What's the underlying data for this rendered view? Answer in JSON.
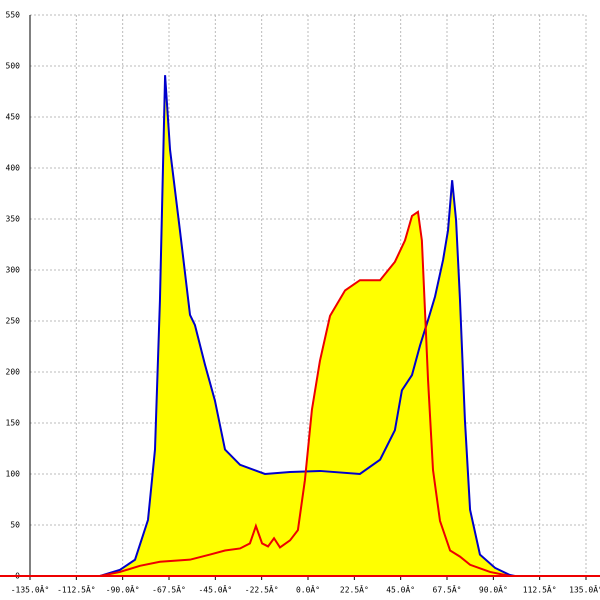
{
  "chart_data": {
    "type": "area",
    "xlim": [
      -135,
      135
    ],
    "ylim": [
      0,
      550
    ],
    "xticks": [
      {
        "value": -135,
        "label": "-135.0Â°"
      },
      {
        "value": -112.5,
        "label": "-112.5Â°"
      },
      {
        "value": -90,
        "label": "-90.0Â°"
      },
      {
        "value": -67.5,
        "label": "-67.5Â°"
      },
      {
        "value": -45,
        "label": "-45.0Â°"
      },
      {
        "value": -22.5,
        "label": "-22.5Â°"
      },
      {
        "value": 0,
        "label": "0.0Â°"
      },
      {
        "value": 22.5,
        "label": "22.5Â°"
      },
      {
        "value": 45,
        "label": "45.0Â°"
      },
      {
        "value": 67.5,
        "label": "67.5Â°"
      },
      {
        "value": 90,
        "label": "90.0Â°"
      },
      {
        "value": 112.5,
        "label": "112.5Â°"
      },
      {
        "value": 135,
        "label": "135.0Â°"
      }
    ],
    "yticks": [
      0,
      50,
      100,
      150,
      200,
      250,
      300,
      350,
      400,
      450,
      500,
      550
    ],
    "grid": true,
    "fill": "#ffff00",
    "series": [
      {
        "color": "#0000cc",
        "x": [
          -101,
          -91.3,
          -84,
          -77.7,
          -74.3,
          -71.9,
          -69.4,
          -67,
          -62.2,
          -57.3,
          -54.9,
          -50,
          -45.2,
          -40.3,
          -33,
          -20.9,
          -8.7,
          5.8,
          25.2,
          35,
          42.2,
          45.6,
          50.5,
          54.4,
          58.3,
          61.7,
          65.6,
          68,
          70,
          71.9,
          73.8,
          76.2,
          78.7,
          83.5,
          90.8,
          98,
          100.5
        ],
        "values": [
          0,
          6,
          16,
          55,
          124,
          270,
          491,
          418,
          339,
          256,
          246,
          207,
          172,
          124,
          109,
          100,
          102,
          103,
          100,
          114,
          143,
          182,
          197,
          226,
          251,
          274,
          310,
          339,
          388,
          349,
          271,
          153,
          65,
          21,
          8,
          1,
          0
        ]
      },
      {
        "color": "#ee0000",
        "x": [
          -101,
          -91.3,
          -81.6,
          -71.9,
          -57.3,
          -47.6,
          -40.3,
          -33,
          -28.2,
          -25.3,
          -22.3,
          -19.4,
          -16.5,
          -13.6,
          -8.7,
          -4.9,
          -1.5,
          1.9,
          5.8,
          10.7,
          18,
          25.2,
          35,
          42.2,
          47.1,
          50.5,
          53.4,
          55.3,
          58.3,
          60.7,
          64.1,
          69,
          73.8,
          78.7,
          88.4,
          98
        ],
        "values": [
          0,
          4,
          10,
          14,
          16,
          21,
          25,
          27,
          32,
          49,
          32,
          29,
          37,
          28,
          35,
          45,
          94,
          163,
          211,
          255,
          280,
          290,
          290,
          308,
          329,
          353,
          357,
          329,
          192,
          104,
          54,
          25,
          19,
          11,
          4,
          0
        ]
      }
    ]
  }
}
